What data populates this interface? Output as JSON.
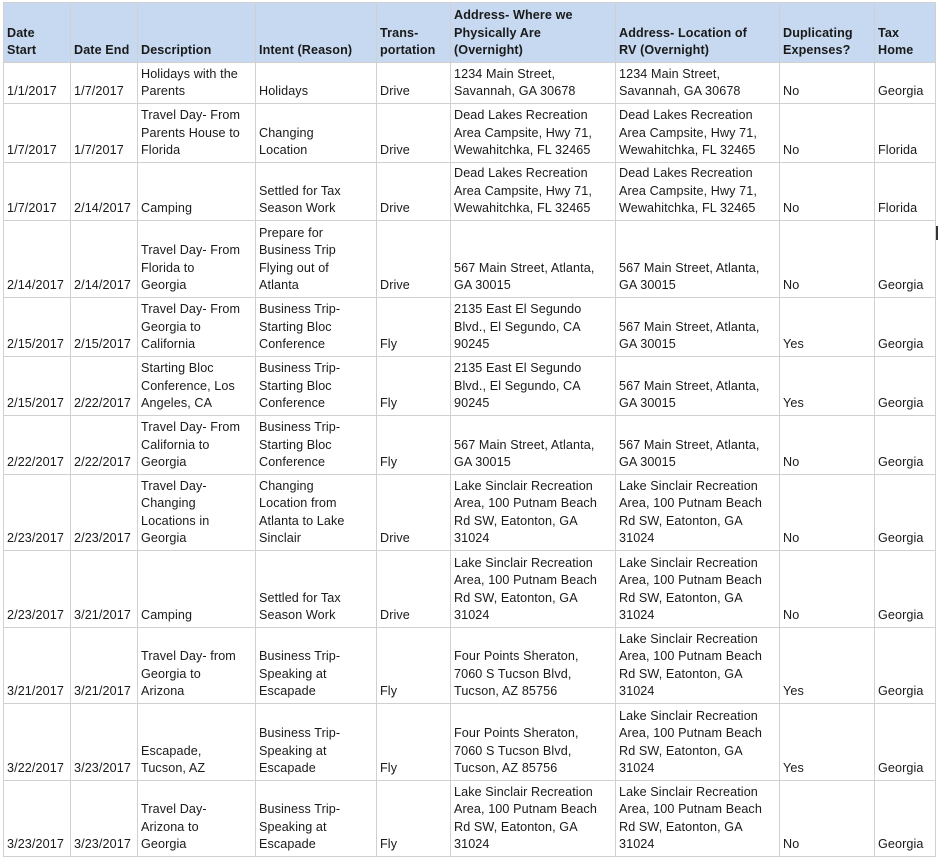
{
  "headers": [
    "Date\nStart",
    "Date End",
    "Description",
    "Intent (Reason)",
    "Trans-\nportation",
    "Address- Where we\nPhysically Are\n(Overnight)",
    "Address- Location of\nRV (Overnight)",
    "Duplicating\nExpenses?",
    "Tax\nHome"
  ],
  "header_color": "#c6d9f0",
  "rows": [
    [
      "1/1/2017",
      "1/7/2017",
      "Holidays with the\nParents",
      "Holidays",
      "Drive",
      "1234 Main Street,\nSavannah, GA 30678",
      "1234 Main Street,\nSavannah, GA 30678",
      "No",
      "Georgia"
    ],
    [
      "1/7/2017",
      "1/7/2017",
      "Travel Day- From\nParents House to\nFlorida",
      "Changing\nLocation",
      "Drive",
      "Dead Lakes Recreation\nArea Campsite, Hwy 71,\nWewahitchka, FL 32465",
      "Dead Lakes Recreation\nArea Campsite, Hwy 71,\nWewahitchka, FL 32465",
      "No",
      "Florida"
    ],
    [
      "1/7/2017",
      "2/14/2017",
      "Camping",
      "Settled for Tax\nSeason Work",
      "Drive",
      "Dead Lakes Recreation\nArea Campsite, Hwy 71,\nWewahitchka, FL 32465",
      "Dead Lakes Recreation\nArea Campsite, Hwy 71,\nWewahitchka, FL 32465",
      "No",
      "Florida"
    ],
    [
      "2/14/2017",
      "2/14/2017",
      "Travel Day- From\nFlorida to\nGeorgia",
      "Prepare for\nBusiness Trip\nFlying out of\nAtlanta",
      "Drive",
      "567 Main Street, Atlanta,\nGA 30015",
      "567 Main Street, Atlanta,\nGA 30015",
      "No",
      "Georgia"
    ],
    [
      "2/15/2017",
      "2/15/2017",
      "Travel Day- From\nGeorgia to\nCalifornia",
      "Business Trip-\nStarting Bloc\nConference",
      "Fly",
      "2135 East El Segundo\nBlvd., El Segundo, CA\n90245",
      "567 Main Street, Atlanta,\nGA 30015",
      "Yes",
      "Georgia"
    ],
    [
      "2/15/2017",
      "2/22/2017",
      "Starting Bloc\nConference, Los\nAngeles, CA",
      "Business Trip-\nStarting Bloc\nConference",
      "Fly",
      "2135 East El Segundo\nBlvd., El Segundo, CA\n90245",
      "567 Main Street, Atlanta,\nGA 30015",
      "Yes",
      "Georgia"
    ],
    [
      "2/22/2017",
      "2/22/2017",
      "Travel Day- From\nCalifornia to\nGeorgia",
      "Business Trip-\nStarting Bloc\nConference",
      "Fly",
      "567 Main Street, Atlanta,\nGA 30015",
      "567 Main Street, Atlanta,\nGA 30015",
      "No",
      "Georgia"
    ],
    [
      "2/23/2017",
      "2/23/2017",
      "Travel Day-\nChanging\nLocations in\nGeorgia",
      "Changing\nLocation from\nAtlanta to Lake\nSinclair",
      "Drive",
      "Lake Sinclair Recreation\nArea, 100 Putnam Beach\nRd SW, Eatonton, GA\n31024",
      "Lake Sinclair Recreation\nArea, 100 Putnam Beach\nRd SW, Eatonton, GA\n31024",
      "No",
      "Georgia"
    ],
    [
      "2/23/2017",
      "3/21/2017",
      "Camping",
      "Settled for Tax\nSeason Work",
      "Drive",
      "Lake Sinclair Recreation\nArea, 100 Putnam Beach\nRd SW, Eatonton, GA\n31024",
      "Lake Sinclair Recreation\nArea, 100 Putnam Beach\nRd SW, Eatonton, GA\n31024",
      "No",
      "Georgia"
    ],
    [
      "3/21/2017",
      "3/21/2017",
      "Travel Day- from\nGeorgia to\nArizona",
      "Business Trip-\nSpeaking at\nEscapade",
      "Fly",
      "Four Points Sheraton,\n7060 S Tucson Blvd,\nTucson, AZ 85756",
      "Lake Sinclair Recreation\nArea, 100 Putnam Beach\nRd SW, Eatonton, GA\n31024",
      "Yes",
      "Georgia"
    ],
    [
      "3/22/2017",
      "3/23/2017",
      "Escapade,\nTucson, AZ",
      "Business Trip-\nSpeaking at\nEscapade",
      "Fly",
      "Four Points Sheraton,\n7060 S Tucson Blvd,\nTucson, AZ 85756",
      "Lake Sinclair Recreation\nArea, 100 Putnam Beach\nRd SW, Eatonton, GA\n31024",
      "Yes",
      "Georgia"
    ],
    [
      "3/23/2017",
      "3/23/2017",
      "Travel Day-\nArizona to\nGeorgia",
      "Business Trip-\nSpeaking at\nEscapade",
      "Fly",
      "Lake Sinclair Recreation\nArea, 100 Putnam Beach\nRd SW, Eatonton, GA\n31024",
      "Lake Sinclair Recreation\nArea, 100 Putnam Beach\nRd SW, Eatonton, GA\n31024",
      "No",
      "Georgia"
    ]
  ]
}
